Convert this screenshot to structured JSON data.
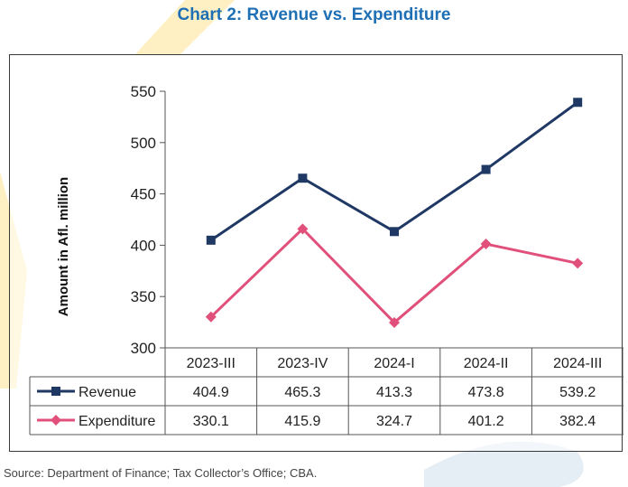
{
  "title": "Chart 2: Revenue vs. Expenditure",
  "source": "Source: Department of Finance; Tax Collector’s Office; CBA.",
  "chart_data": {
    "type": "line",
    "title": "Chart 2: Revenue vs. Expenditure",
    "xlabel": "",
    "ylabel": "Amount in Afl. million",
    "categories": [
      "2023-III",
      "2023-IV",
      "2024-I",
      "2024-II",
      "2024-III"
    ],
    "ylim": [
      300,
      550
    ],
    "yticks": [
      300,
      350,
      400,
      450,
      500,
      550
    ],
    "grid": false,
    "legend": "data-table",
    "series": [
      {
        "name": "Revenue",
        "values": [
          404.9,
          465.3,
          413.3,
          473.8,
          539.2
        ],
        "color": "#1f3864",
        "marker": "square"
      },
      {
        "name": "Expenditure",
        "values": [
          330.1,
          415.9,
          324.7,
          401.2,
          382.4
        ],
        "color": "#e0507a",
        "marker": "diamond"
      }
    ],
    "table_values": [
      [
        "404.9",
        "465.3",
        "413.3",
        "473.8",
        "539.2"
      ],
      [
        "330.1",
        "415.9",
        "324.7",
        "401.2",
        "382.4"
      ]
    ]
  }
}
